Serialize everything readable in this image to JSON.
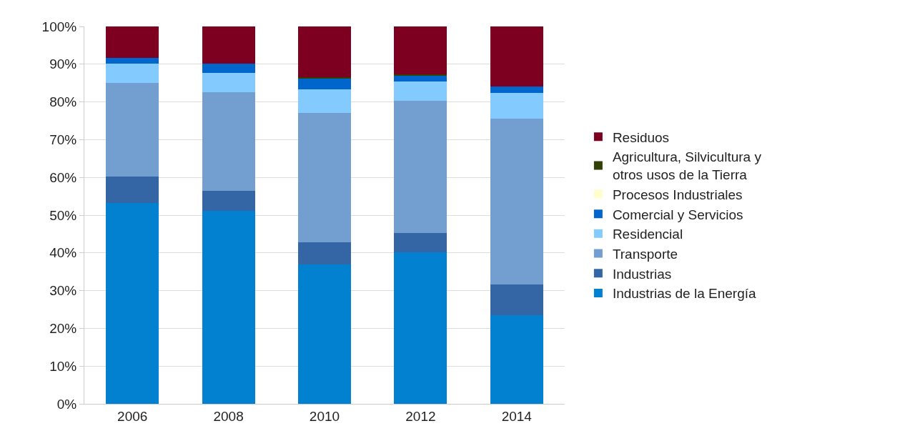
{
  "chart_data": {
    "type": "bar",
    "stacked": true,
    "categories": [
      "2006",
      "2008",
      "2010",
      "2012",
      "2014"
    ],
    "series": [
      {
        "name": "Industrias de la Energía",
        "color": "#0281d1",
        "values": [
          53.2,
          51.1,
          36.9,
          40.2,
          23.5
        ]
      },
      {
        "name": "Industrias",
        "color": "#3465a4",
        "values": [
          7.0,
          5.3,
          5.9,
          5.1,
          8.1
        ]
      },
      {
        "name": "Transporte",
        "color": "#729fcf",
        "values": [
          24.8,
          26.2,
          34.3,
          35.0,
          44.0
        ]
      },
      {
        "name": "Residencial",
        "color": "#83caff",
        "values": [
          5.2,
          5.1,
          6.2,
          5.1,
          6.7
        ]
      },
      {
        "name": "Comercial y Servicios",
        "color": "#0066cc",
        "values": [
          1.5,
          2.5,
          3.0,
          1.7,
          1.8
        ]
      },
      {
        "name": "Procesos Industriales",
        "color": "#ffffcc",
        "values": [
          0,
          0,
          0,
          0,
          0
        ]
      },
      {
        "name": "Agricultura, Silvicultura y otros usos de la Tierra",
        "color": "#314004",
        "values": [
          null,
          null,
          0.2,
          0.2,
          null
        ]
      },
      {
        "name": "Residuos",
        "color": "#7e0021",
        "values": [
          8.3,
          9.8,
          13.5,
          12.7,
          15.9
        ]
      }
    ],
    "ylim": [
      0,
      100
    ],
    "yticks": [
      {
        "value": 0,
        "label": "0%"
      },
      {
        "value": 10,
        "label": "10%"
      },
      {
        "value": 20,
        "label": "20%"
      },
      {
        "value": 30,
        "label": "30%"
      },
      {
        "value": 40,
        "label": "40%"
      },
      {
        "value": 50,
        "label": "50%"
      },
      {
        "value": 60,
        "label": "60%"
      },
      {
        "value": 70,
        "label": "70%"
      },
      {
        "value": 80,
        "label": "80%"
      },
      {
        "value": 90,
        "label": "90%"
      },
      {
        "value": 100,
        "label": "100%"
      }
    ],
    "grid": "y",
    "legend": "right"
  }
}
